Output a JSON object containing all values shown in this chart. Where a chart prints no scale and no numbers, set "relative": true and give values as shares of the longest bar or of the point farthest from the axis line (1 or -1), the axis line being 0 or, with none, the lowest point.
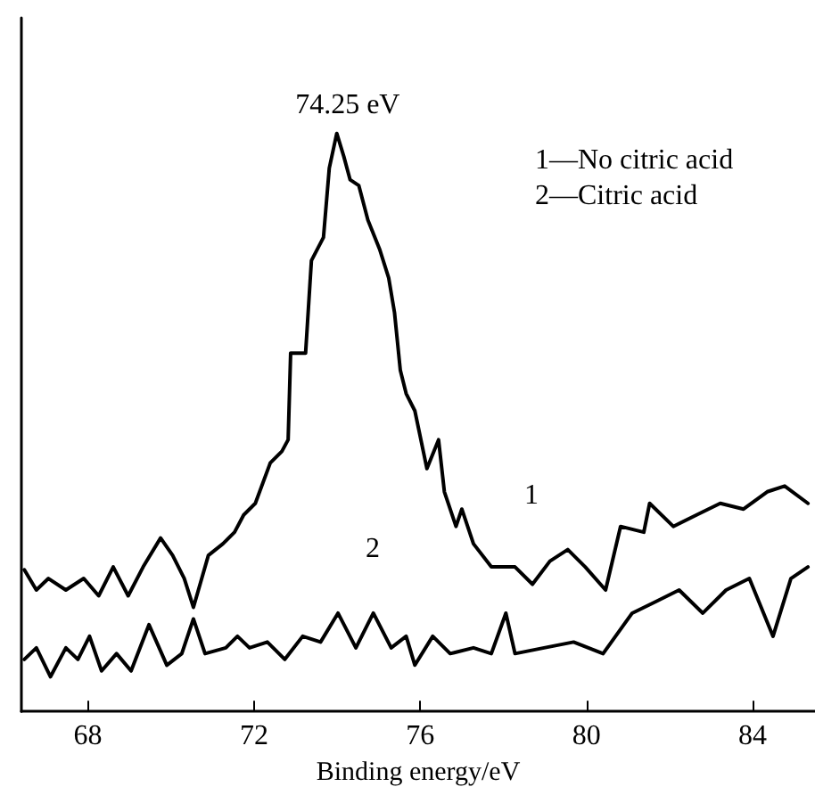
{
  "chart_data": {
    "type": "line",
    "relative": true,
    "xlabel": "Binding energy/eV",
    "xlim": [
      66.4,
      85.5
    ],
    "xticks": [
      68,
      72,
      76,
      80,
      84
    ],
    "grid": false,
    "marker": "none",
    "line_style": "solid",
    "annotations": [
      {
        "text": "74.25 eV",
        "x": 74.25,
        "y": 1.0
      },
      "1",
      "2",
      "1—No citric acid",
      "2—Citric acid"
    ],
    "series": [
      {
        "color": "#000000",
        "x": [
          66.47,
          66.76,
          67.05,
          67.47,
          67.9,
          68.26,
          68.61,
          68.97,
          69.33,
          69.75,
          70.04,
          70.32,
          70.54,
          70.9,
          71.25,
          71.53,
          71.75,
          72.03,
          72.39,
          72.67,
          72.82,
          72.88,
          73.24,
          73.38,
          73.67,
          73.81,
          73.99,
          74.16,
          74.31,
          74.52,
          74.74,
          75.02,
          75.24,
          75.38,
          75.52,
          75.66,
          75.87,
          76.16,
          76.44,
          76.58,
          76.86,
          77.0,
          77.28,
          77.71,
          78.28,
          78.7,
          79.12,
          79.55,
          79.97,
          80.46,
          80.82,
          81.38,
          81.52,
          82.09,
          82.65,
          83.22,
          83.78,
          84.35,
          84.77,
          85.33
        ],
        "values": [
          0.245,
          0.21,
          0.23,
          0.21,
          0.23,
          0.2,
          0.25,
          0.2,
          0.25,
          0.3,
          0.27,
          0.23,
          0.18,
          0.27,
          0.29,
          0.31,
          0.34,
          0.36,
          0.43,
          0.45,
          0.47,
          0.62,
          0.62,
          0.78,
          0.82,
          0.94,
          1.0,
          0.96,
          0.92,
          0.91,
          0.85,
          0.8,
          0.75,
          0.69,
          0.59,
          0.55,
          0.52,
          0.42,
          0.47,
          0.38,
          0.32,
          0.35,
          0.29,
          0.25,
          0.25,
          0.22,
          0.26,
          0.28,
          0.25,
          0.21,
          0.32,
          0.31,
          0.36,
          0.32,
          0.34,
          0.36,
          0.35,
          0.38,
          0.39,
          0.36
        ]
      },
      {
        "color": "#000000",
        "x": [
          66.47,
          66.76,
          67.1,
          67.47,
          67.76,
          68.04,
          68.33,
          68.69,
          69.04,
          69.47,
          69.9,
          70.26,
          70.54,
          70.82,
          71.32,
          71.6,
          71.89,
          72.32,
          72.74,
          73.17,
          73.6,
          74.02,
          74.45,
          74.87,
          75.3,
          75.66,
          75.87,
          76.3,
          76.72,
          77.28,
          77.71,
          78.06,
          78.28,
          78.98,
          79.69,
          80.4,
          81.1,
          81.67,
          82.23,
          82.8,
          83.36,
          83.92,
          84.49,
          84.92,
          85.33
        ],
        "values": [
          0.09,
          0.11,
          0.06,
          0.11,
          0.09,
          0.13,
          0.07,
          0.1,
          0.07,
          0.15,
          0.08,
          0.1,
          0.16,
          0.1,
          0.11,
          0.13,
          0.11,
          0.12,
          0.09,
          0.13,
          0.12,
          0.17,
          0.11,
          0.17,
          0.11,
          0.13,
          0.08,
          0.13,
          0.1,
          0.11,
          0.1,
          0.17,
          0.1,
          0.11,
          0.12,
          0.1,
          0.17,
          0.19,
          0.21,
          0.17,
          0.21,
          0.23,
          0.13,
          0.23,
          0.25
        ]
      }
    ]
  }
}
